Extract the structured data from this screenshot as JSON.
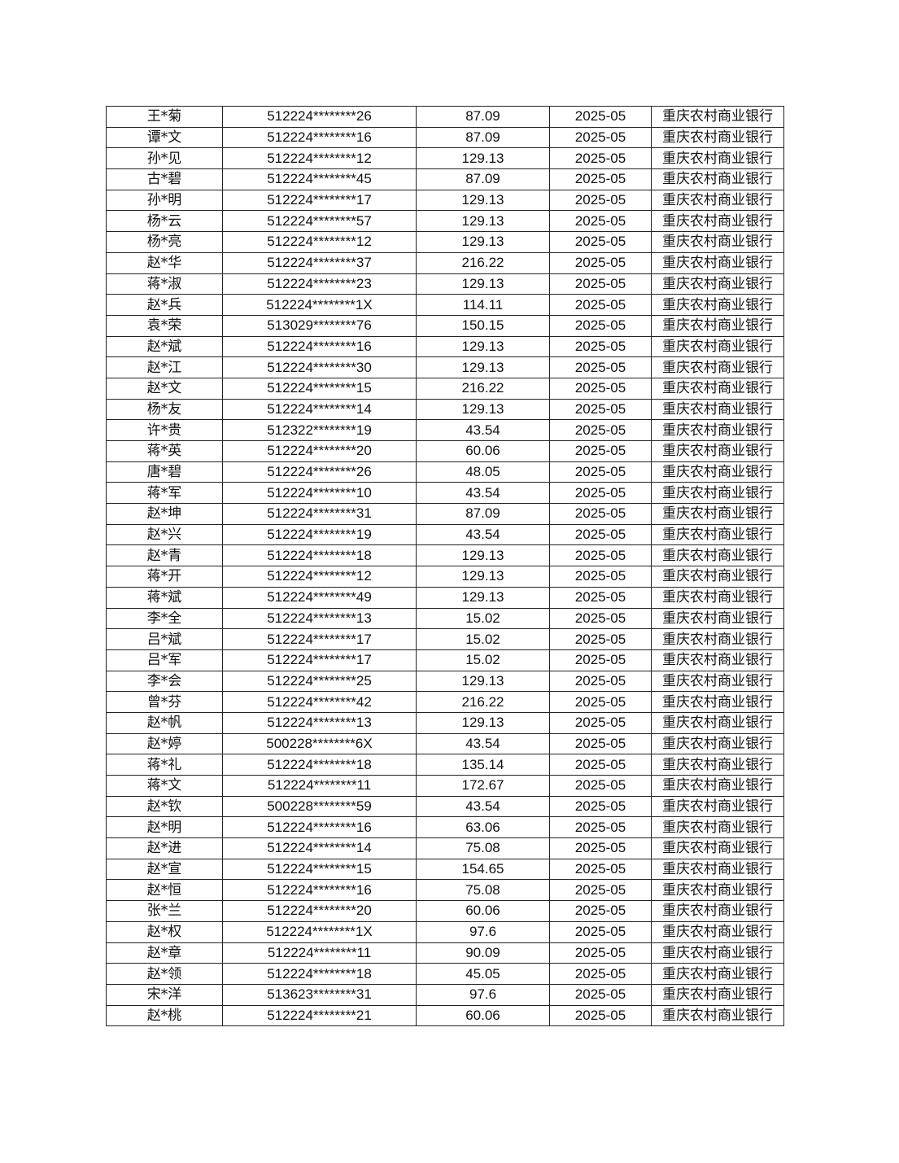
{
  "rows": [
    {
      "name": "王*菊",
      "id": "512224********26",
      "amount": "87.09",
      "month": "2025-05",
      "bank": "重庆农村商业银行"
    },
    {
      "name": "谭*文",
      "id": "512224********16",
      "amount": "87.09",
      "month": "2025-05",
      "bank": "重庆农村商业银行"
    },
    {
      "name": "孙*见",
      "id": "512224********12",
      "amount": "129.13",
      "month": "2025-05",
      "bank": "重庆农村商业银行"
    },
    {
      "name": "古*碧",
      "id": "512224********45",
      "amount": "87.09",
      "month": "2025-05",
      "bank": "重庆农村商业银行"
    },
    {
      "name": "孙*明",
      "id": "512224********17",
      "amount": "129.13",
      "month": "2025-05",
      "bank": "重庆农村商业银行"
    },
    {
      "name": "杨*云",
      "id": "512224********57",
      "amount": "129.13",
      "month": "2025-05",
      "bank": "重庆农村商业银行"
    },
    {
      "name": "杨*亮",
      "id": "512224********12",
      "amount": "129.13",
      "month": "2025-05",
      "bank": "重庆农村商业银行"
    },
    {
      "name": "赵*华",
      "id": "512224********37",
      "amount": "216.22",
      "month": "2025-05",
      "bank": "重庆农村商业银行"
    },
    {
      "name": "蒋*淑",
      "id": "512224********23",
      "amount": "129.13",
      "month": "2025-05",
      "bank": "重庆农村商业银行"
    },
    {
      "name": "赵*兵",
      "id": "512224********1X",
      "amount": "114.11",
      "month": "2025-05",
      "bank": "重庆农村商业银行"
    },
    {
      "name": "袁*荣",
      "id": "513029********76",
      "amount": "150.15",
      "month": "2025-05",
      "bank": "重庆农村商业银行"
    },
    {
      "name": "赵*斌",
      "id": "512224********16",
      "amount": "129.13",
      "month": "2025-05",
      "bank": "重庆农村商业银行"
    },
    {
      "name": "赵*江",
      "id": "512224********30",
      "amount": "129.13",
      "month": "2025-05",
      "bank": "重庆农村商业银行"
    },
    {
      "name": "赵*文",
      "id": "512224********15",
      "amount": "216.22",
      "month": "2025-05",
      "bank": "重庆农村商业银行"
    },
    {
      "name": "杨*友",
      "id": "512224********14",
      "amount": "129.13",
      "month": "2025-05",
      "bank": "重庆农村商业银行"
    },
    {
      "name": "许*贵",
      "id": "512322********19",
      "amount": "43.54",
      "month": "2025-05",
      "bank": "重庆农村商业银行"
    },
    {
      "name": "蒋*英",
      "id": "512224********20",
      "amount": "60.06",
      "month": "2025-05",
      "bank": "重庆农村商业银行"
    },
    {
      "name": "唐*碧",
      "id": "512224********26",
      "amount": "48.05",
      "month": "2025-05",
      "bank": "重庆农村商业银行"
    },
    {
      "name": "蒋*军",
      "id": "512224********10",
      "amount": "43.54",
      "month": "2025-05",
      "bank": "重庆农村商业银行"
    },
    {
      "name": "赵*坤",
      "id": "512224********31",
      "amount": "87.09",
      "month": "2025-05",
      "bank": "重庆农村商业银行"
    },
    {
      "name": "赵*兴",
      "id": "512224********19",
      "amount": "43.54",
      "month": "2025-05",
      "bank": "重庆农村商业银行"
    },
    {
      "name": "赵*青",
      "id": "512224********18",
      "amount": "129.13",
      "month": "2025-05",
      "bank": "重庆农村商业银行"
    },
    {
      "name": "蒋*开",
      "id": "512224********12",
      "amount": "129.13",
      "month": "2025-05",
      "bank": "重庆农村商业银行"
    },
    {
      "name": "蒋*斌",
      "id": "512224********49",
      "amount": "129.13",
      "month": "2025-05",
      "bank": "重庆农村商业银行"
    },
    {
      "name": "李*全",
      "id": "512224********13",
      "amount": "15.02",
      "month": "2025-05",
      "bank": "重庆农村商业银行"
    },
    {
      "name": "吕*斌",
      "id": "512224********17",
      "amount": "15.02",
      "month": "2025-05",
      "bank": "重庆农村商业银行"
    },
    {
      "name": "吕*军",
      "id": "512224********17",
      "amount": "15.02",
      "month": "2025-05",
      "bank": "重庆农村商业银行"
    },
    {
      "name": "李*会",
      "id": "512224********25",
      "amount": "129.13",
      "month": "2025-05",
      "bank": "重庆农村商业银行"
    },
    {
      "name": "曾*芬",
      "id": "512224********42",
      "amount": "216.22",
      "month": "2025-05",
      "bank": "重庆农村商业银行"
    },
    {
      "name": "赵*帆",
      "id": "512224********13",
      "amount": "129.13",
      "month": "2025-05",
      "bank": "重庆农村商业银行"
    },
    {
      "name": "赵*婷",
      "id": "500228********6X",
      "amount": "43.54",
      "month": "2025-05",
      "bank": "重庆农村商业银行"
    },
    {
      "name": "蒋*礼",
      "id": "512224********18",
      "amount": "135.14",
      "month": "2025-05",
      "bank": "重庆农村商业银行"
    },
    {
      "name": "蒋*文",
      "id": "512224********11",
      "amount": "172.67",
      "month": "2025-05",
      "bank": "重庆农村商业银行"
    },
    {
      "name": "赵*钦",
      "id": "500228********59",
      "amount": "43.54",
      "month": "2025-05",
      "bank": "重庆农村商业银行"
    },
    {
      "name": "赵*明",
      "id": "512224********16",
      "amount": "63.06",
      "month": "2025-05",
      "bank": "重庆农村商业银行"
    },
    {
      "name": "赵*进",
      "id": "512224********14",
      "amount": "75.08",
      "month": "2025-05",
      "bank": "重庆农村商业银行"
    },
    {
      "name": "赵*宣",
      "id": "512224********15",
      "amount": "154.65",
      "month": "2025-05",
      "bank": "重庆农村商业银行"
    },
    {
      "name": "赵*恒",
      "id": "512224********16",
      "amount": "75.08",
      "month": "2025-05",
      "bank": "重庆农村商业银行"
    },
    {
      "name": "张*兰",
      "id": "512224********20",
      "amount": "60.06",
      "month": "2025-05",
      "bank": "重庆农村商业银行"
    },
    {
      "name": "赵*权",
      "id": "512224********1X",
      "amount": "97.6",
      "month": "2025-05",
      "bank": "重庆农村商业银行"
    },
    {
      "name": "赵*章",
      "id": "512224********11",
      "amount": "90.09",
      "month": "2025-05",
      "bank": "重庆农村商业银行"
    },
    {
      "name": "赵*领",
      "id": "512224********18",
      "amount": "45.05",
      "month": "2025-05",
      "bank": "重庆农村商业银行"
    },
    {
      "name": "宋*洋",
      "id": "513623********31",
      "amount": "97.6",
      "month": "2025-05",
      "bank": "重庆农村商业银行"
    },
    {
      "name": "赵*桃",
      "id": "512224********21",
      "amount": "60.06",
      "month": "2025-05",
      "bank": "重庆农村商业银行"
    }
  ]
}
